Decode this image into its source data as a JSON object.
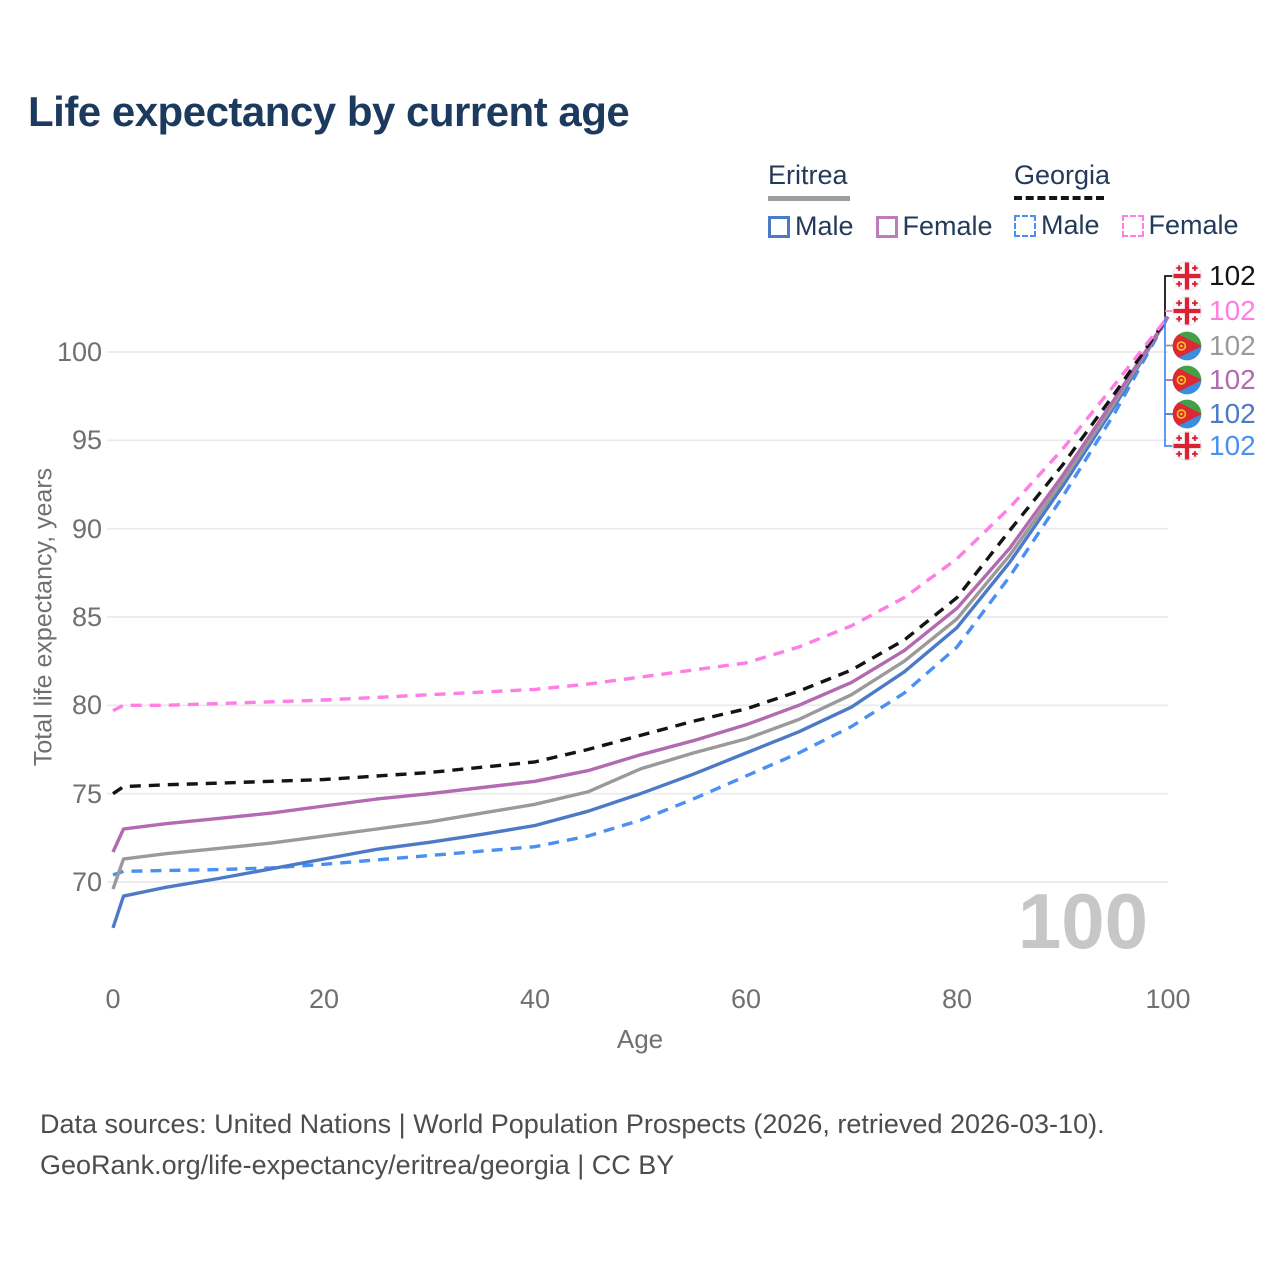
{
  "title": "Life expectancy by current age",
  "watermark": "100",
  "legend": {
    "groups": [
      {
        "country": "Eritrea",
        "line_style": "solid",
        "underline_color": "#9e9e9e",
        "items": [
          {
            "label": "Male",
            "color": "#4d7ac7"
          },
          {
            "label": "Female",
            "color": "#bd7cba"
          }
        ]
      },
      {
        "country": "Georgia",
        "line_style": "dashed",
        "underline_color": "#141414",
        "items": [
          {
            "label": "Male",
            "color": "#4a90f2"
          },
          {
            "label": "Female",
            "color": "#ff7de4"
          }
        ]
      }
    ]
  },
  "footer": {
    "line1": "Data sources: United Nations | World Population Prospects (2026, retrieved 2026-03-10).",
    "line2": "GeoRank.org/life-expectancy/eritrea/georgia | CC BY"
  },
  "chart_data": {
    "type": "line",
    "title": "Life expectancy by current age",
    "xlabel": "Age",
    "ylabel": "Total life expectancy, years",
    "xlim": [
      0,
      100
    ],
    "ylim": [
      66.5,
      103.5
    ],
    "x_ticks": [
      0,
      20,
      40,
      60,
      80,
      100
    ],
    "y_ticks": [
      70,
      75,
      80,
      85,
      90,
      95,
      100
    ],
    "grid": "horizontal",
    "legend_position": "top-right",
    "age_counter": "100",
    "x": [
      0,
      1,
      5,
      10,
      15,
      20,
      25,
      30,
      35,
      40,
      45,
      50,
      55,
      60,
      65,
      70,
      75,
      80,
      85,
      90,
      95,
      100
    ],
    "series": [
      {
        "name": "Georgia Male",
        "country": "Georgia",
        "sex": "male",
        "line": "dashed",
        "color": "#4a90f2",
        "values": [
          70.4,
          70.6,
          70.65,
          70.7,
          70.8,
          71.0,
          71.25,
          71.5,
          71.75,
          72.0,
          72.6,
          73.5,
          74.7,
          76.0,
          77.3,
          78.8,
          80.7,
          83.3,
          87.3,
          91.8,
          96.6,
          102
        ]
      },
      {
        "name": "Eritrea Male",
        "country": "Eritrea",
        "sex": "male",
        "line": "solid",
        "color": "#4d7ac7",
        "values": [
          67.4,
          69.2,
          69.7,
          70.2,
          70.75,
          71.3,
          71.85,
          72.25,
          72.7,
          73.2,
          74.0,
          75.0,
          76.1,
          77.3,
          78.5,
          79.9,
          81.9,
          84.4,
          88.1,
          92.4,
          97.0,
          102
        ]
      },
      {
        "name": "Eritrea",
        "country": "Eritrea",
        "sex": "total",
        "line": "solid",
        "color": "#9a9a9a",
        "values": [
          69.6,
          71.3,
          71.6,
          71.9,
          72.2,
          72.6,
          73.0,
          73.4,
          73.9,
          74.4,
          75.1,
          76.4,
          77.3,
          78.1,
          79.2,
          80.6,
          82.5,
          84.9,
          88.5,
          92.7,
          97.2,
          102
        ]
      },
      {
        "name": "Eritrea Female",
        "country": "Eritrea",
        "sex": "female",
        "line": "solid",
        "color": "#b26ab0",
        "values": [
          71.7,
          73.0,
          73.3,
          73.6,
          73.9,
          74.3,
          74.7,
          75.0,
          75.35,
          75.7,
          76.3,
          77.2,
          78.0,
          78.9,
          80.0,
          81.3,
          83.1,
          85.5,
          88.9,
          93.0,
          97.4,
          102
        ]
      },
      {
        "name": "Georgia",
        "country": "Georgia",
        "sex": "total",
        "line": "dashed",
        "color": "#141414",
        "values": [
          75.0,
          75.4,
          75.5,
          75.6,
          75.7,
          75.8,
          76.0,
          76.2,
          76.5,
          76.8,
          77.5,
          78.3,
          79.1,
          79.8,
          80.8,
          82.0,
          83.7,
          86.1,
          89.9,
          93.6,
          97.7,
          102
        ]
      },
      {
        "name": "Georgia Female",
        "country": "Georgia",
        "sex": "female",
        "line": "dashed",
        "color": "#ff7de4",
        "values": [
          79.7,
          80.0,
          80.0,
          80.1,
          80.2,
          80.3,
          80.45,
          80.6,
          80.75,
          80.9,
          81.2,
          81.6,
          82.0,
          82.4,
          83.3,
          84.5,
          86.1,
          88.3,
          91.2,
          94.5,
          98.2,
          102
        ]
      }
    ],
    "end_labels": [
      {
        "flag": "georgia",
        "series": "Georgia",
        "value": "102",
        "color": "#141414"
      },
      {
        "flag": "georgia",
        "series": "Georgia Female",
        "value": "102",
        "color": "#ff7de4"
      },
      {
        "flag": "eritrea",
        "series": "Eritrea",
        "value": "102",
        "color": "#9a9a9a"
      },
      {
        "flag": "eritrea",
        "series": "Eritrea Female",
        "value": "102",
        "color": "#b26ab0"
      },
      {
        "flag": "eritrea",
        "series": "Eritrea Male",
        "value": "102",
        "color": "#4d7ac7"
      },
      {
        "flag": "georgia",
        "series": "Georgia Male",
        "value": "102",
        "color": "#4a90f2"
      }
    ]
  }
}
